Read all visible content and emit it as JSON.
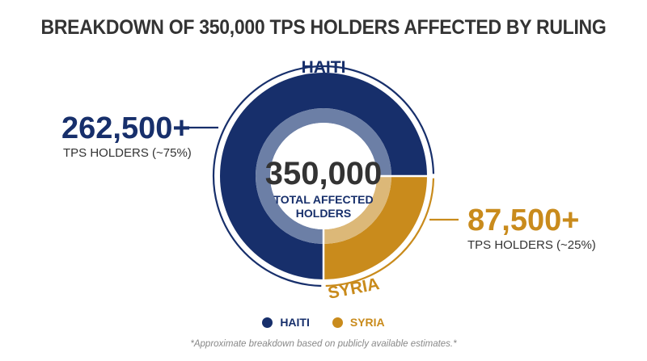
{
  "title": "BREAKDOWN OF 350,000 TPS HOLDERS AFFECTED BY RULING",
  "colors": {
    "haiti": "#172f6b",
    "syria": "#c98b1c",
    "text": "#333333",
    "footnote": "#888888"
  },
  "center": {
    "value": "350,000",
    "label_line1": "TOTAL AFFECTED",
    "label_line2": "HOLDERS"
  },
  "callouts": {
    "haiti": {
      "value": "262,500+",
      "label": "TPS HOLDERS (~75%)"
    },
    "syria": {
      "value": "87,500+",
      "label": "TPS HOLDERS (~25%)"
    }
  },
  "arc_labels": {
    "haiti": "HAITI",
    "syria": "SYRIA"
  },
  "legend": [
    {
      "label": "HAITI",
      "color": "#172f6b"
    },
    {
      "label": "SYRIA",
      "color": "#c98b1c"
    }
  ],
  "footnote": "*Approximate breakdown based on publicly available estimates.*",
  "chart_data": {
    "type": "pie",
    "title": "BREAKDOWN OF 350,000 TPS HOLDERS AFFECTED BY RULING",
    "total": 350000,
    "categories": [
      "HAITI",
      "SYRIA"
    ],
    "values": [
      262500,
      87500
    ],
    "percentages": [
      75,
      25
    ],
    "legend_position": "bottom"
  }
}
